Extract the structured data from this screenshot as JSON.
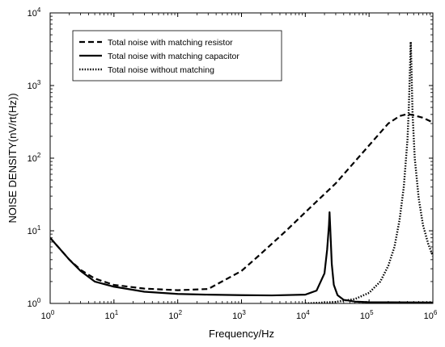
{
  "chart_data": {
    "type": "line",
    "xlabel": "Frequency/Hz",
    "ylabel": "NOISE DENSITY(nV/rt(Hz))",
    "xscale": "log",
    "yscale": "log",
    "xlim": [
      1,
      1000000
    ],
    "ylim": [
      1,
      10000
    ],
    "grid": false,
    "legend_placement": "top-left",
    "x_tick_labels": [
      {
        "base": "10",
        "exp": "0"
      },
      {
        "base": "10",
        "exp": "1"
      },
      {
        "base": "10",
        "exp": "2"
      },
      {
        "base": "10",
        "exp": "3"
      },
      {
        "base": "10",
        "exp": "4"
      },
      {
        "base": "10",
        "exp": "5"
      },
      {
        "base": "10",
        "exp": "6"
      }
    ],
    "y_tick_labels": [
      {
        "base": "10",
        "exp": "0"
      },
      {
        "base": "10",
        "exp": "1"
      },
      {
        "base": "10",
        "exp": "2"
      },
      {
        "base": "10",
        "exp": "3"
      },
      {
        "base": "10",
        "exp": "4"
      }
    ],
    "series": [
      {
        "name": "Total noise with matching resistor",
        "style": "dashed",
        "color": "#000000",
        "x": [
          1,
          2,
          3,
          5,
          10,
          30,
          100,
          300,
          1000,
          2000,
          5000,
          10000,
          30000,
          100000,
          200000,
          300000,
          400000,
          500000,
          700000,
          1000000
        ],
        "y": [
          8.0,
          4.0,
          2.9,
          2.2,
          1.8,
          1.6,
          1.52,
          1.58,
          2.8,
          4.8,
          10,
          18,
          45,
          150,
          300,
          380,
          405,
          390,
          360,
          310
        ]
      },
      {
        "name": "Total noise with matching capacitor",
        "style": "solid",
        "color": "#000000",
        "x": [
          1,
          2,
          3,
          5,
          10,
          30,
          100,
          300,
          1000,
          3000,
          10000,
          15000,
          20000,
          22000,
          23500,
          24000,
          24500,
          26000,
          28000,
          32000,
          40000,
          60000,
          100000,
          1000000
        ],
        "y": [
          8.0,
          4.0,
          2.8,
          2.0,
          1.7,
          1.45,
          1.35,
          1.32,
          1.3,
          1.29,
          1.32,
          1.5,
          2.6,
          5.5,
          12,
          18,
          12,
          3.5,
          1.8,
          1.3,
          1.12,
          1.06,
          1.04,
          1.03
        ]
      },
      {
        "name": "Total noise without matching",
        "style": "dotted",
        "color": "#000000",
        "x": [
          10000,
          30000,
          60000,
          100000,
          150000,
          200000,
          250000,
          300000,
          350000,
          400000,
          420000,
          440000,
          450000,
          460000,
          480000,
          520000,
          600000,
          700000,
          850000,
          1000000
        ],
        "y": [
          1.0,
          1.05,
          1.15,
          1.4,
          2.0,
          3.3,
          6.0,
          14,
          40,
          180,
          500,
          2000,
          4000,
          2000,
          420,
          100,
          28,
          12,
          6.5,
          4.5
        ]
      }
    ]
  }
}
